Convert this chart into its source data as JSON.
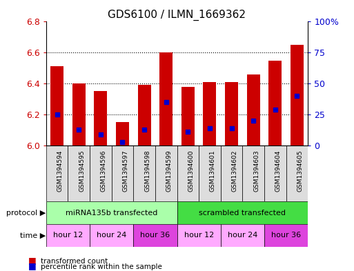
{
  "title": "GDS6100 / ILMN_1669362",
  "samples": [
    "GSM1394594",
    "GSM1394595",
    "GSM1394596",
    "GSM1394597",
    "GSM1394598",
    "GSM1394599",
    "GSM1394600",
    "GSM1394601",
    "GSM1394602",
    "GSM1394603",
    "GSM1394604",
    "GSM1394605"
  ],
  "red_values": [
    6.51,
    6.4,
    6.35,
    6.15,
    6.39,
    6.6,
    6.38,
    6.41,
    6.41,
    6.46,
    6.55,
    6.65
  ],
  "blue_values": [
    6.2,
    6.1,
    6.07,
    6.02,
    6.1,
    6.28,
    6.09,
    6.11,
    6.11,
    6.16,
    6.23,
    6.32
  ],
  "ylim": [
    6.0,
    6.8
  ],
  "yticks": [
    6.0,
    6.2,
    6.4,
    6.6,
    6.8
  ],
  "right_yticks": [
    0,
    25,
    50,
    75,
    100
  ],
  "right_ylim": [
    0,
    100
  ],
  "bar_color": "#cc0000",
  "dot_color": "#0000cc",
  "sample_label_bg": "#dddddd",
  "protocol_groups": [
    {
      "label": "miRNA135b transfected",
      "start": 0,
      "end": 6,
      "color": "#aaffaa"
    },
    {
      "label": "scrambled transfected",
      "start": 6,
      "end": 12,
      "color": "#44dd44"
    }
  ],
  "time_groups": [
    {
      "label": "hour 12",
      "start": 0,
      "end": 2,
      "color": "#ffaaff"
    },
    {
      "label": "hour 24",
      "start": 2,
      "end": 4,
      "color": "#ffaaff"
    },
    {
      "label": "hour 36",
      "start": 4,
      "end": 6,
      "color": "#dd44dd"
    },
    {
      "label": "hour 12",
      "start": 6,
      "end": 8,
      "color": "#ffaaff"
    },
    {
      "label": "hour 24",
      "start": 8,
      "end": 10,
      "color": "#ffaaff"
    },
    {
      "label": "hour 36",
      "start": 10,
      "end": 12,
      "color": "#dd44dd"
    }
  ],
  "bar_width": 0.6,
  "label_color_left": "#cc0000",
  "label_color_right": "#0000cc",
  "grid_color": "#000000"
}
